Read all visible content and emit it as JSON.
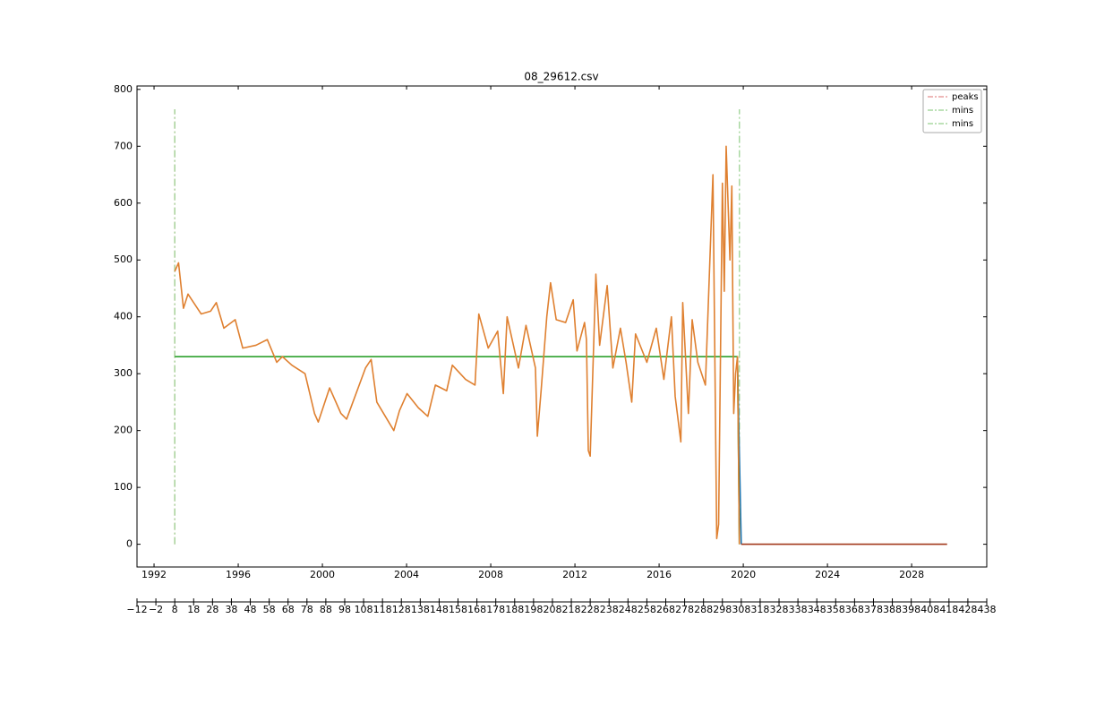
{
  "chart_data": {
    "type": "line",
    "title": "08_29612.csv",
    "xlim": [
      -12,
      438
    ],
    "xticks": [
      {
        "value": -12,
        "label": "−12"
      },
      {
        "value": -2,
        "label": "−2"
      },
      8,
      18,
      28,
      38,
      48,
      58,
      68,
      78,
      88,
      98,
      108,
      118,
      128,
      138,
      148,
      158,
      168,
      178,
      188,
      198,
      208,
      218,
      228,
      238,
      248,
      258,
      268,
      278,
      288,
      298,
      308,
      318,
      328,
      338,
      348,
      358,
      368,
      378,
      388,
      398,
      408,
      418,
      428,
      438
    ],
    "x2lim": [
      1991.19,
      2031.57
    ],
    "x2ticks": [
      1992,
      1996,
      2000,
      2004,
      2008,
      2012,
      2016,
      2020,
      2024,
      2028
    ],
    "ylim": [
      -40,
      806
    ],
    "yticks": [
      0,
      100,
      200,
      300,
      400,
      500,
      600,
      700,
      800
    ],
    "legend": "upper right",
    "lines": [
      {
        "color": "#1f77b4",
        "x": [
          306,
          308
        ],
        "values": [
          320,
          0
        ]
      },
      {
        "color": "#2ca02c",
        "x": [
          8,
          306,
          307
        ],
        "values": [
          330,
          330,
          0
        ]
      },
      {
        "color": "#df8030",
        "x": [
          8,
          10,
          12.6,
          15,
          22,
          27,
          30,
          34,
          40,
          44,
          51,
          57,
          62,
          65,
          70,
          77,
          82,
          84,
          90,
          96,
          99,
          109,
          112,
          115,
          124,
          127,
          131,
          137,
          142,
          146,
          152,
          155,
          162,
          167,
          169,
          174,
          179,
          182,
          184,
          190,
          194,
          199,
          200,
          202,
          205,
          207,
          210,
          215,
          219,
          221,
          225,
          226,
          227,
          228,
          231,
          233,
          237,
          240,
          244,
          247,
          250,
          252,
          258,
          263,
          267,
          271,
          273,
          276,
          277,
          280,
          282,
          285,
          289,
          293,
          295,
          296,
          298,
          299,
          300,
          302,
          303,
          304,
          305,
          306,
          307
        ],
        "values": [
          480,
          495,
          415,
          440,
          405,
          410,
          425,
          380,
          395,
          345,
          350,
          360,
          320,
          330,
          315,
          300,
          230,
          215,
          275,
          230,
          220,
          310,
          325,
          250,
          200,
          235,
          265,
          240,
          225,
          280,
          270,
          315,
          290,
          280,
          405,
          345,
          375,
          265,
          400,
          310,
          385,
          310,
          190,
          270,
          400,
          460,
          395,
          390,
          430,
          340,
          390,
          360,
          165,
          155,
          475,
          350,
          455,
          310,
          380,
          320,
          250,
          370,
          320,
          380,
          290,
          400,
          260,
          180,
          425,
          230,
          395,
          320,
          280,
          650,
          10,
          35,
          635,
          445,
          700,
          500,
          630,
          230,
          300,
          330,
          0
        ]
      },
      {
        "color": "#a33a1c",
        "x": [
          308,
          417
        ],
        "values": [
          0,
          0
        ]
      }
    ],
    "vlines": [
      {
        "name": "peaks",
        "color": "#e8a0a0",
        "x": 8,
        "ymin": 0,
        "ymax": 765
      },
      {
        "name": "mins",
        "color": "#a8d8a0",
        "x": 8,
        "ymin": 0,
        "ymax": 765
      },
      {
        "name": "mins",
        "color": "#a8d8a0",
        "x": 307,
        "ymin": 0,
        "ymax": 765
      }
    ]
  }
}
